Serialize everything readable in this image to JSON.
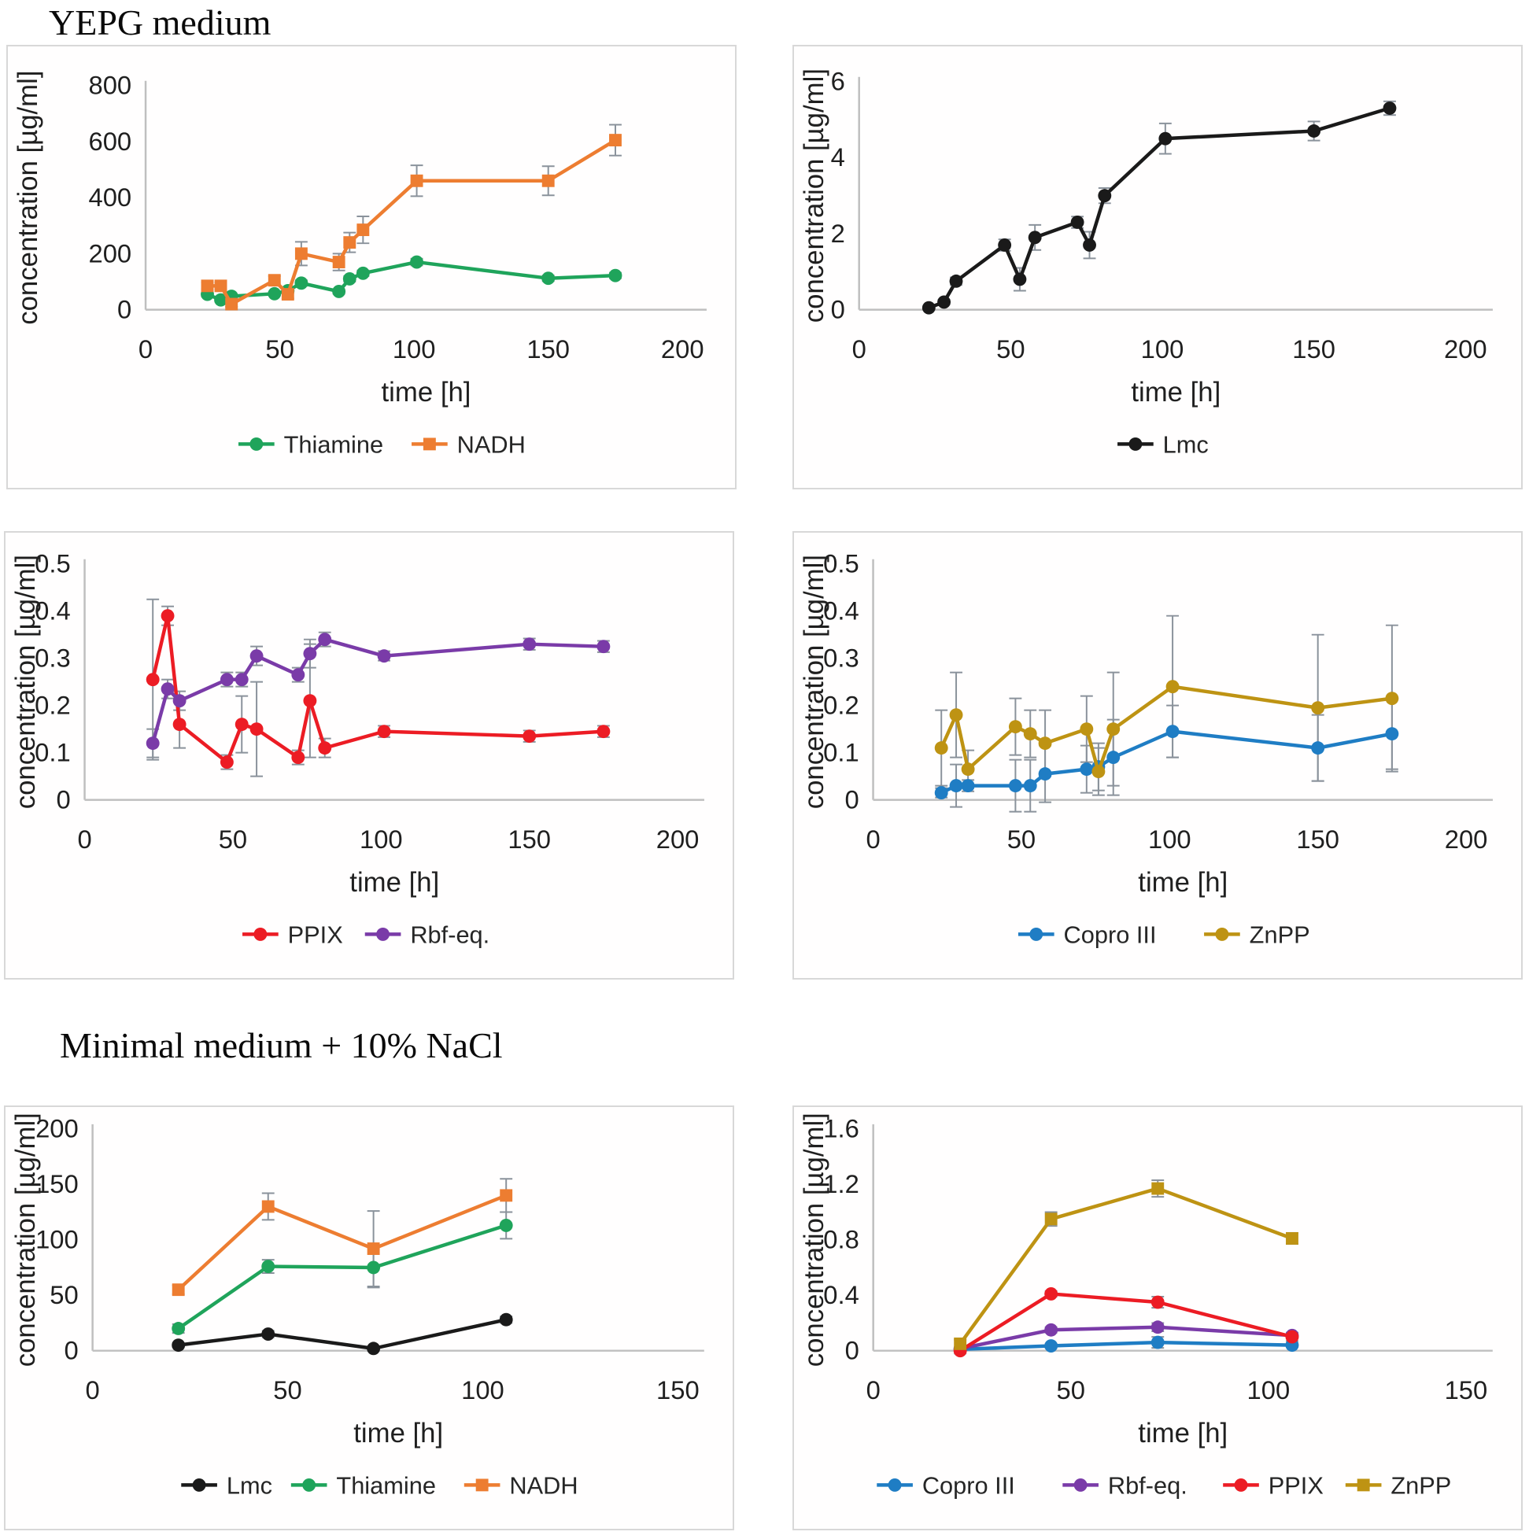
{
  "sections": [
    {
      "title": "YEPG medium"
    },
    {
      "title": "Minimal medium + 10% NaCl"
    }
  ],
  "chart_data": [
    {
      "id": "yepg-thiamine-nadh",
      "type": "line",
      "xlabel": "time [h]",
      "ylabel": "concentration [µg/ml]",
      "xlim": [
        0,
        200
      ],
      "ylim": [
        0,
        800
      ],
      "xticks": [
        "0",
        "50",
        "100",
        "150",
        "200"
      ],
      "yticks": [
        "0",
        "200",
        "400",
        "600",
        "800"
      ],
      "grid": false,
      "legend_position": "bottom",
      "x": [
        23,
        28,
        32,
        48,
        53,
        58,
        72,
        76,
        81,
        101,
        150,
        175
      ],
      "series": [
        {
          "name": "Thiamine",
          "color": "#1FA45B",
          "marker": "circle",
          "values": [
            55,
            35,
            48,
            57,
            68,
            95,
            65,
            110,
            130,
            170,
            112,
            122
          ],
          "errors": [
            8,
            6,
            6,
            6,
            8,
            10,
            8,
            10,
            10,
            12,
            10,
            10
          ]
        },
        {
          "name": "NADH",
          "color": "#ED7D31",
          "marker": "square",
          "values": [
            85,
            85,
            20,
            105,
            55,
            200,
            170,
            240,
            285,
            460,
            460,
            605
          ],
          "errors": [
            12,
            12,
            10,
            15,
            15,
            42,
            30,
            35,
            48,
            55,
            52,
            55
          ]
        }
      ]
    },
    {
      "id": "yepg-lmc",
      "type": "line",
      "xlabel": "time [h]",
      "ylabel": "concentration [µg/ml]",
      "xlim": [
        0,
        200
      ],
      "ylim": [
        0,
        6
      ],
      "xticks": [
        "0",
        "50",
        "100",
        "150",
        "200"
      ],
      "yticks": [
        "0",
        "2",
        "4",
        "6"
      ],
      "grid": false,
      "legend_position": "bottom",
      "x": [
        23,
        28,
        32,
        48,
        53,
        58,
        72,
        76,
        81,
        101,
        150,
        175
      ],
      "series": [
        {
          "name": "Lmc",
          "color": "#1a1a1a",
          "marker": "circle",
          "values": [
            0.05,
            0.2,
            0.75,
            1.7,
            0.8,
            1.9,
            2.3,
            1.7,
            3.0,
            4.5,
            4.7,
            5.3
          ],
          "errors": [
            0.05,
            0.06,
            0.1,
            0.15,
            0.3,
            0.33,
            0.15,
            0.35,
            0.2,
            0.4,
            0.25,
            0.18
          ]
        }
      ]
    },
    {
      "id": "yepg-ppix-rbf",
      "type": "line",
      "xlabel": "time [h]",
      "ylabel": "concentration [µg/ml]",
      "xlim": [
        0,
        200
      ],
      "ylim": [
        0,
        0.5
      ],
      "xticks": [
        "0",
        "50",
        "100",
        "150",
        "200"
      ],
      "yticks": [
        "0",
        "0.1",
        "0.2",
        "0.3",
        "0.4",
        "0.5"
      ],
      "grid": false,
      "legend_position": "bottom",
      "x": [
        23,
        28,
        32,
        48,
        53,
        58,
        72,
        76,
        81,
        101,
        150,
        175
      ],
      "series": [
        {
          "name": "PPIX",
          "color": "#EC1C24",
          "marker": "circle",
          "values": [
            0.255,
            0.39,
            0.16,
            0.08,
            0.16,
            0.15,
            0.09,
            0.21,
            0.11,
            0.145,
            0.135,
            0.145
          ],
          "errors": [
            0.17,
            0.02,
            0.05,
            0.015,
            0.06,
            0.1,
            0.015,
            0.12,
            0.02,
            0.012,
            0.012,
            0.012
          ]
        },
        {
          "name": "Rbf-eq.",
          "color": "#7A3BA8",
          "marker": "circle",
          "values": [
            0.12,
            0.235,
            0.21,
            0.255,
            0.255,
            0.305,
            0.265,
            0.31,
            0.34,
            0.305,
            0.33,
            0.325
          ],
          "errors": [
            0.03,
            0.02,
            0.02,
            0.015,
            0.015,
            0.02,
            0.015,
            0.03,
            0.015,
            0.01,
            0.012,
            0.012
          ]
        }
      ]
    },
    {
      "id": "yepg-copro-znpp",
      "type": "line",
      "xlabel": "time [h]",
      "ylabel": "concentration [µg/ml]",
      "xlim": [
        0,
        200
      ],
      "ylim": [
        0,
        0.5
      ],
      "xticks": [
        "0",
        "50",
        "100",
        "150",
        "200"
      ],
      "yticks": [
        "0",
        "0.1",
        "0.2",
        "0.3",
        "0.4",
        "0.5"
      ],
      "grid": false,
      "legend_position": "bottom",
      "x": [
        23,
        28,
        32,
        48,
        53,
        58,
        72,
        76,
        81,
        101,
        150,
        175
      ],
      "series": [
        {
          "name": "Copro III",
          "color": "#1F7DC4",
          "marker": "circle",
          "values": [
            0.015,
            0.03,
            0.03,
            0.03,
            0.03,
            0.055,
            0.065,
            0.07,
            0.09,
            0.145,
            0.11,
            0.14
          ],
          "errors": [
            0.01,
            0.045,
            0.012,
            0.055,
            0.055,
            0.06,
            0.05,
            0.05,
            0.08,
            0.055,
            0.07,
            0.075
          ]
        },
        {
          "name": "ZnPP",
          "color": "#BE9313",
          "marker": "circle",
          "values": [
            0.11,
            0.18,
            0.065,
            0.155,
            0.14,
            0.12,
            0.15,
            0.06,
            0.15,
            0.24,
            0.195,
            0.215
          ],
          "errors": [
            0.08,
            0.09,
            0.04,
            0.06,
            0.05,
            0.07,
            0.07,
            0.05,
            0.12,
            0.15,
            0.155,
            0.155
          ]
        }
      ]
    },
    {
      "id": "minimal-lmc-thiamine-nadh",
      "type": "line",
      "xlabel": "time [h]",
      "ylabel": "concentration [µg/ml]",
      "xlim": [
        0,
        150
      ],
      "ylim": [
        0,
        200
      ],
      "xticks": [
        "0",
        "50",
        "100",
        "150"
      ],
      "yticks": [
        "0",
        "50",
        "100",
        "150",
        "200"
      ],
      "grid": false,
      "legend_position": "bottom",
      "x": [
        22,
        45,
        72,
        106
      ],
      "series": [
        {
          "name": "Lmc",
          "color": "#1a1a1a",
          "marker": "circle",
          "values": [
            5,
            15,
            2,
            28
          ],
          "errors": [
            2,
            3,
            2,
            3
          ]
        },
        {
          "name": "Thiamine",
          "color": "#1FA45B",
          "marker": "circle",
          "values": [
            20,
            76,
            75,
            113
          ],
          "errors": [
            4,
            6,
            18,
            12
          ]
        },
        {
          "name": "NADH",
          "color": "#ED7D31",
          "marker": "square",
          "values": [
            55,
            130,
            92,
            140
          ],
          "errors": [
            4,
            12,
            34,
            15
          ]
        }
      ]
    },
    {
      "id": "minimal-porphyrins",
      "type": "line",
      "xlabel": "time [h]",
      "ylabel": "concentration [µg/ml]",
      "xlim": [
        0,
        150
      ],
      "ylim": [
        0,
        1.6
      ],
      "xticks": [
        "0",
        "50",
        "100",
        "150"
      ],
      "yticks": [
        "0",
        "0.4",
        "0.8",
        "1.2",
        "1.6"
      ],
      "grid": false,
      "legend_position": "bottom",
      "x": [
        22,
        45,
        72,
        106
      ],
      "series": [
        {
          "name": "Copro III",
          "color": "#1F7DC4",
          "marker": "circle",
          "values": [
            0.01,
            0.035,
            0.06,
            0.04
          ],
          "errors": [
            0.01,
            0.015,
            0.04,
            0.015
          ]
        },
        {
          "name": "Rbf-eq.",
          "color": "#7A3BA8",
          "marker": "circle",
          "values": [
            0.015,
            0.15,
            0.17,
            0.11
          ],
          "errors": [
            0.01,
            0.02,
            0.03,
            0.02
          ]
        },
        {
          "name": "PPIX",
          "color": "#EC1C24",
          "marker": "circle",
          "values": [
            0.0,
            0.41,
            0.35,
            0.1
          ],
          "errors": [
            0.02,
            0.02,
            0.04,
            0.03
          ]
        },
        {
          "name": "ZnPP",
          "color": "#BE9313",
          "marker": "square",
          "values": [
            0.05,
            0.95,
            1.17,
            0.81
          ],
          "errors": [
            0.03,
            0.05,
            0.06,
            0.04
          ]
        }
      ]
    }
  ],
  "style": {
    "axis_color": "#bfbfbf",
    "error_bar_color": "#8a929b",
    "text_color": "#1f1f1f"
  }
}
